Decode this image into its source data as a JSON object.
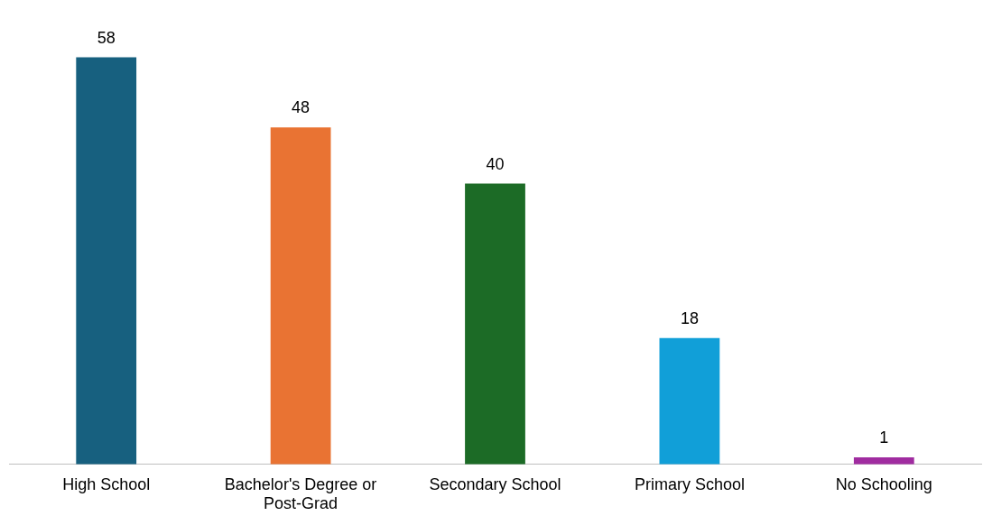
{
  "chart_data": {
    "type": "bar",
    "categories": [
      "High School",
      "Bachelor's Degree or Post-Grad",
      "Secondary School",
      "Primary School",
      "No Schooling"
    ],
    "values": [
      58,
      48,
      40,
      18,
      1
    ],
    "colors": [
      "#17607f",
      "#e97333",
      "#1c6b26",
      "#119fd8",
      "#a02ca0"
    ],
    "data_labels": true,
    "grid": false,
    "legend": false
  }
}
